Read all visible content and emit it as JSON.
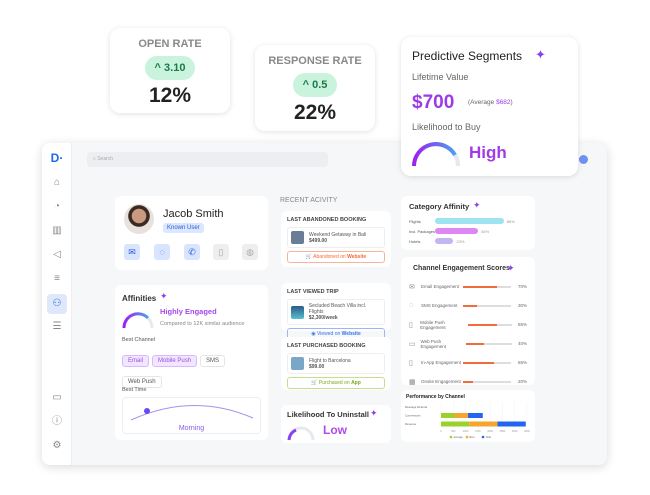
{
  "open_rate": {
    "title": "OPEN RATE",
    "delta": "3.10",
    "value": "12%"
  },
  "response_rate": {
    "title": "RESPONSE RATE",
    "delta": "0.5",
    "value": "22%"
  },
  "predictive": {
    "title": "Predictive Segments",
    "ltv_label": "Lifetime Value",
    "ltv": "$700",
    "avg_prefix": "(Average ",
    "avg": "$682",
    "avg_suffix": ")",
    "likelihood_label": "Likelihood to Buy",
    "likelihood": "High"
  },
  "search": {
    "placeholder": "Search"
  },
  "profile": {
    "name": "Jacob Smith",
    "badge": "Known User"
  },
  "affinities": {
    "title": "Affinities",
    "level": "Highly Engaged",
    "compare": "Compared to 12K similar audience",
    "best_channel_label": "Best Channel",
    "channels": [
      {
        "label": "Email",
        "active": true
      },
      {
        "label": "Mobile Push",
        "active": true
      },
      {
        "label": "SMS",
        "active": false
      },
      {
        "label": "Web Push",
        "active": false
      }
    ],
    "best_time_label": "Best Time",
    "best_time": "Morning"
  },
  "recent": {
    "title": "RECENT ACIVITY",
    "items": [
      {
        "header": "LAST ABANDONED BOOKING",
        "name": "Weekend Getaway in Bali",
        "price": "$499.00",
        "action": "Abandoned on ",
        "source": "Website",
        "color": "#f26b3a"
      },
      {
        "header": "LAST VIEWED TRIP",
        "name": "Secluded Beach Villa incl. Flights",
        "price": "$2,300/week",
        "action": "Viewed on ",
        "source": "Website",
        "color": "#3b6ff0"
      },
      {
        "header": "LAST PURCHASED BOOKING",
        "name": "Flight to Barcelona",
        "price": "$99.00",
        "action": "Purchased on ",
        "source": "App",
        "color": "#7aa81c"
      }
    ]
  },
  "uninstall": {
    "title": "Likelihood To Uninstall",
    "value": "Low"
  },
  "category": {
    "title": "Category Affinity",
    "items": [
      {
        "label": "Flights",
        "pct": "86%",
        "value": 86,
        "color": "#9ee3f0"
      },
      {
        "label": "Incl. Packages",
        "pct": "54%",
        "value": 54,
        "color": "#dd86f4"
      },
      {
        "label": "Hotels",
        "pct": "23%",
        "value": 23,
        "color": "#c3b6f6"
      }
    ]
  },
  "engagement": {
    "title": "Channel Engagement Scores",
    "items": [
      {
        "label": "Email Engagement",
        "pct": "70%",
        "value": 70
      },
      {
        "label": "SMS Engagement",
        "pct": "30%",
        "value": 30
      },
      {
        "label": "Mobile Push Engagement",
        "pct": "65%",
        "value": 65
      },
      {
        "label": "Web Push Engagement",
        "pct": "40%",
        "value": 40
      },
      {
        "label": "In-App Engagement",
        "pct": "65%",
        "value": 65
      },
      {
        "label": "Onsite Engagement",
        "pct": "20%",
        "value": 20
      }
    ]
  },
  "chart_data": {
    "type": "bar",
    "orientation": "horizontal",
    "stacked": true,
    "title": "Performance by Channel",
    "categories": [
      "Message Referral",
      "Conversions",
      "Revenue"
    ],
    "ticks": [
      "0",
      "500",
      "1000",
      "1500",
      "2000",
      "2500",
      "3000",
      "3500"
    ],
    "xlim": [
      0,
      3500
    ],
    "series": [
      {
        "name": "Average",
        "color": "#9bd22a",
        "values": [
          0,
          550,
          1150
        ]
      },
      {
        "name": "Best",
        "color": "#f7a531",
        "values": [
          0,
          550,
          1150
        ]
      },
      {
        "name": "Total",
        "color": "#2166f2",
        "values": [
          0,
          600,
          1150
        ]
      }
    ],
    "legend": "bottom"
  }
}
